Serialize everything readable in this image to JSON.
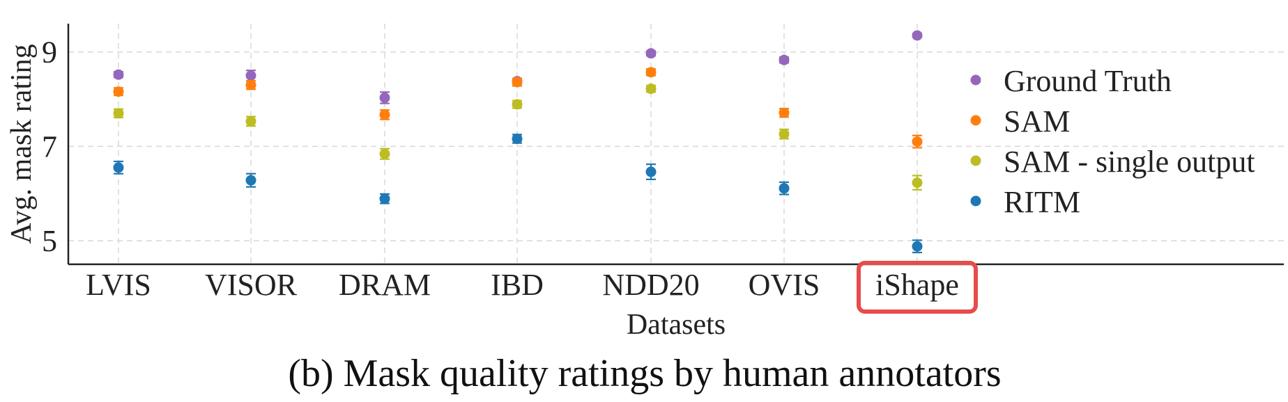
{
  "chart_data": {
    "type": "scatter",
    "title": "",
    "xlabel": "Datasets",
    "ylabel": "Avg. mask rating",
    "ylim": [
      4.5,
      9.6
    ],
    "yticks": [
      5,
      7,
      9
    ],
    "grid": true,
    "legend_position": "right",
    "error_bars": true,
    "categories": [
      "LVIS",
      "VISOR",
      "DRAM",
      "IBD",
      "NDD20",
      "OVIS",
      "iShape"
    ],
    "highlighted_category": "iShape",
    "highlight_color": "#e84b4b",
    "series": [
      {
        "name": "Ground Truth",
        "color": "#9467bd",
        "values": [
          8.52,
          8.5,
          8.03,
          8.38,
          8.97,
          8.83,
          9.35
        ],
        "errors": [
          0.06,
          0.11,
          0.12,
          0.06,
          0.05,
          0.06,
          0.04
        ]
      },
      {
        "name": "SAM",
        "color": "#ff7f0e",
        "values": [
          8.16,
          8.3,
          7.67,
          8.36,
          8.57,
          7.71,
          7.1
        ],
        "errors": [
          0.08,
          0.09,
          0.1,
          0.08,
          0.07,
          0.09,
          0.13
        ]
      },
      {
        "name": "SAM - single output",
        "color": "#bcbd22",
        "values": [
          7.7,
          7.53,
          6.84,
          7.89,
          8.22,
          7.26,
          6.23
        ],
        "errors": [
          0.09,
          0.1,
          0.11,
          0.08,
          0.07,
          0.1,
          0.15
        ]
      },
      {
        "name": "RITM",
        "color": "#1f77b4",
        "values": [
          6.55,
          6.28,
          5.89,
          7.16,
          6.46,
          6.11,
          4.88
        ],
        "errors": [
          0.13,
          0.14,
          0.1,
          0.09,
          0.16,
          0.13,
          0.13
        ]
      }
    ]
  },
  "caption": "(b) Mask quality ratings by human annotators"
}
